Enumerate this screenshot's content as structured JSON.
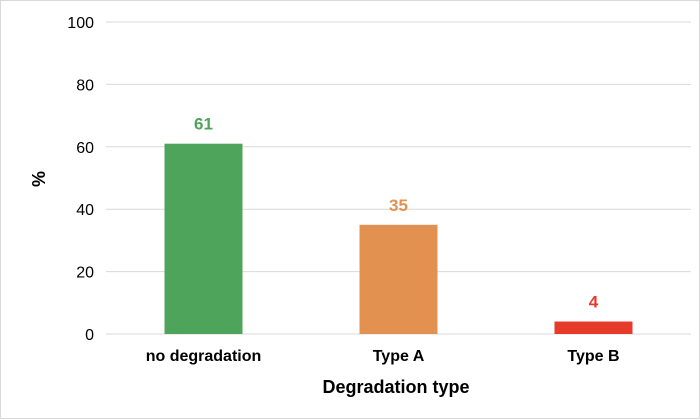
{
  "chart_data": {
    "type": "bar",
    "categories": [
      "no degradation",
      "Type A",
      "Type B"
    ],
    "values": [
      61,
      35,
      4
    ],
    "data_labels": [
      "61",
      "35",
      "4"
    ],
    "bar_colors": [
      "#4ea45a",
      "#e39150",
      "#e63b2a"
    ],
    "xlabel": "Degradation type",
    "ylabel": "%",
    "ylim": [
      0,
      100
    ],
    "yticks": [
      0,
      20,
      40,
      60,
      80,
      100
    ],
    "ytick_labels": [
      "0",
      "20",
      "40",
      "60",
      "80",
      "100"
    ],
    "grid": true,
    "legend": "none"
  }
}
